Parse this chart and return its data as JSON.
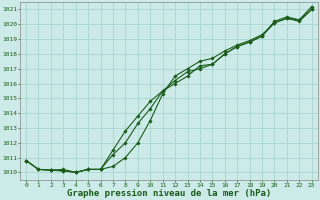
{
  "bg_color": "#cceae7",
  "grid_color": "#aad4d0",
  "line_color": "#1a5c1a",
  "marker_color": "#1a5c1a",
  "xlabel": "Graphe pression niveau de la mer (hPa)",
  "xlabel_fontsize": 6.5,
  "xlim": [
    -0.5,
    23.5
  ],
  "ylim": [
    1009.5,
    1021.5
  ],
  "yticks": [
    1010,
    1011,
    1012,
    1013,
    1014,
    1015,
    1016,
    1017,
    1018,
    1019,
    1020,
    1021
  ],
  "xticks": [
    0,
    1,
    2,
    3,
    4,
    5,
    6,
    7,
    8,
    9,
    10,
    11,
    12,
    13,
    14,
    15,
    16,
    17,
    18,
    19,
    20,
    21,
    22,
    23
  ],
  "line1_x": [
    0,
    1,
    2,
    3,
    4,
    5,
    6,
    7,
    8,
    9,
    10,
    11,
    12,
    13,
    14,
    15,
    16,
    17,
    18,
    19,
    20,
    21,
    22,
    23
  ],
  "line1_y": [
    1010.8,
    1010.2,
    1010.15,
    1010.2,
    1010.0,
    1010.2,
    1010.2,
    1011.2,
    1012.0,
    1013.3,
    1014.3,
    1015.5,
    1016.0,
    1016.5,
    1017.2,
    1017.3,
    1018.0,
    1018.5,
    1018.8,
    1019.2,
    1020.2,
    1020.5,
    1020.3,
    1021.2
  ],
  "line2_x": [
    0,
    1,
    2,
    3,
    4,
    5,
    6,
    7,
    8,
    9,
    10,
    11,
    12,
    13,
    14,
    15,
    16,
    17,
    18,
    19,
    20,
    21,
    22,
    23
  ],
  "line2_y": [
    1010.8,
    1010.2,
    1010.15,
    1010.1,
    1010.0,
    1010.2,
    1010.2,
    1011.5,
    1012.8,
    1013.8,
    1014.8,
    1015.5,
    1016.2,
    1016.8,
    1017.0,
    1017.3,
    1018.0,
    1018.5,
    1018.8,
    1019.2,
    1020.1,
    1020.4,
    1020.3,
    1021.0
  ],
  "line3_x": [
    0,
    1,
    2,
    3,
    4,
    5,
    6,
    7,
    8,
    9,
    10,
    11,
    12,
    13,
    14,
    15,
    16,
    17,
    18,
    19,
    20,
    21,
    22,
    23
  ],
  "line3_y": [
    1010.8,
    1010.2,
    1010.15,
    1010.1,
    1010.0,
    1010.2,
    1010.2,
    1010.4,
    1011.0,
    1012.0,
    1013.5,
    1015.3,
    1016.5,
    1017.0,
    1017.5,
    1017.7,
    1018.2,
    1018.6,
    1018.9,
    1019.3,
    1020.1,
    1020.4,
    1020.2,
    1021.0
  ]
}
